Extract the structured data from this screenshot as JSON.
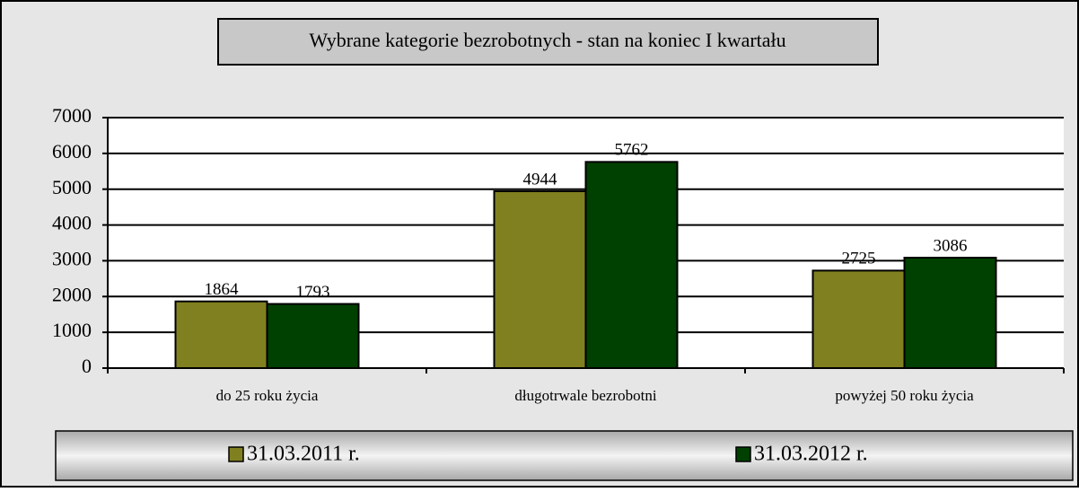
{
  "chart_data": {
    "type": "bar",
    "title": "Wybrane  kategorie  bezrobotnych - stan na koniec I kwartału",
    "categories": [
      "do 25 roku życia",
      "długotrwale bezrobotni",
      "powyżej 50 roku życia"
    ],
    "series": [
      {
        "name": "31.03.2011 r.",
        "color": "#808020",
        "values": [
          1864,
          4944,
          2725
        ]
      },
      {
        "name": "31.03.2012 r.",
        "color": "#004000",
        "values": [
          1793,
          5762,
          3086
        ]
      }
    ],
    "ylim": [
      0,
      7000
    ],
    "yticks": [
      0,
      1000,
      2000,
      3000,
      4000,
      5000,
      6000,
      7000
    ],
    "grid": true,
    "legend": "bottom"
  }
}
